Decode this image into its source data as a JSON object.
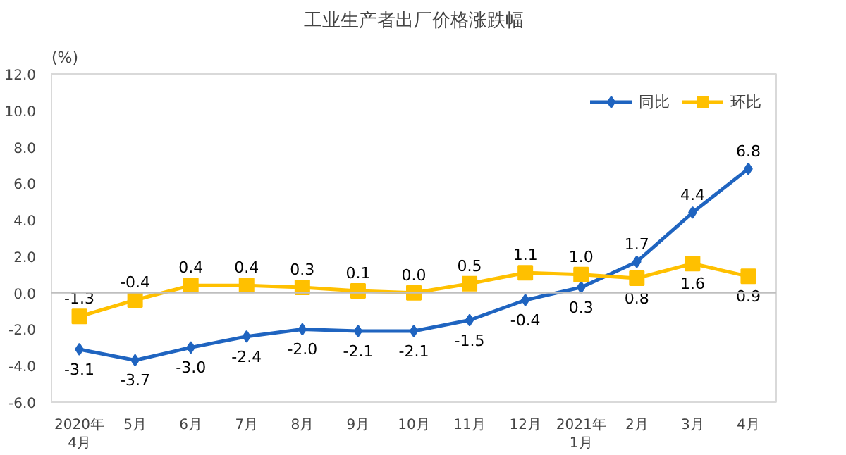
{
  "chart_data": {
    "type": "line",
    "title": "工业生产者出厂价格涨跌幅",
    "ylabel": "(%)",
    "categories": [
      "2020年\n4月",
      "5月",
      "6月",
      "7月",
      "8月",
      "9月",
      "10月",
      "11月",
      "12月",
      "2021年\n1月",
      "2月",
      "3月",
      "4月"
    ],
    "series": [
      {
        "name": "同比",
        "color": "#1f64c0",
        "marker": "diamond",
        "values": [
          -3.1,
          -3.7,
          -3.0,
          -2.4,
          -2.0,
          -2.1,
          -2.1,
          -1.5,
          -0.4,
          0.3,
          1.7,
          4.4,
          6.8
        ],
        "value_labels": [
          "-3.1",
          "-3.7",
          "-3.0",
          "-2.4",
          "-2.0",
          "-2.1",
          "-2.1",
          "-1.5",
          "-0.4",
          "0.3",
          "1.7",
          "4.4",
          "6.8"
        ]
      },
      {
        "name": "环比",
        "color": "#ffc000",
        "marker": "square",
        "values": [
          -1.3,
          -0.4,
          0.4,
          0.4,
          0.3,
          0.1,
          0.0,
          0.5,
          1.1,
          1.0,
          0.8,
          1.6,
          0.9
        ],
        "value_labels": [
          "-1.3",
          "-0.4",
          "0.4",
          "0.4",
          "0.3",
          "0.1",
          "0.0",
          "0.5",
          "1.1",
          "1.0",
          "0.8",
          "1.6",
          "0.9"
        ]
      }
    ],
    "ylim": [
      -6,
      12
    ],
    "yticks": [
      {
        "value": -6,
        "label": "-6.0"
      },
      {
        "value": -4,
        "label": "-4.0"
      },
      {
        "value": -2,
        "label": "-2.0"
      },
      {
        "value": 0,
        "label": "0.0"
      },
      {
        "value": 2,
        "label": "2.0"
      },
      {
        "value": 4,
        "label": "4.0"
      },
      {
        "value": 6,
        "label": "6.0"
      },
      {
        "value": 8,
        "label": "8.0"
      },
      {
        "value": 10,
        "label": "10.0"
      },
      {
        "value": 12,
        "label": "12.0"
      }
    ],
    "ref_lines": [
      {
        "axis": "y",
        "value": 0,
        "color": "#bfbfbf"
      }
    ],
    "legend": "top right",
    "grid": false,
    "line_style": "solid"
  }
}
